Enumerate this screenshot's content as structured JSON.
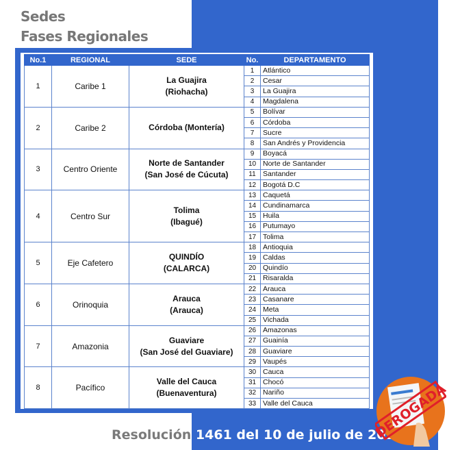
{
  "title1": "Sedes",
  "title2": "Fases Regionales",
  "headers": {
    "no1": "No.1",
    "regional": "REGIONAL",
    "sede": "SEDE",
    "no": "No.",
    "departamento": "DEPARTAMENTO"
  },
  "rows": [
    {
      "no": "1",
      "regional": "Caribe 1",
      "sede1": "La Guajira",
      "sede2": "(Riohacha)",
      "deps": [
        [
          "1",
          "Atlántico"
        ],
        [
          "2",
          "Cesar"
        ],
        [
          "3",
          "La Guajira"
        ],
        [
          "4",
          "Magdalena"
        ]
      ]
    },
    {
      "no": "2",
      "regional": "Caribe 2",
      "sede1": "Córdoba (Montería)",
      "sede2": "",
      "deps": [
        [
          "5",
          "Bolívar"
        ],
        [
          "6",
          "Córdoba"
        ],
        [
          "7",
          "Sucre"
        ],
        [
          "8",
          "San Andrés y Providencia"
        ]
      ]
    },
    {
      "no": "3",
      "regional": "Centro Oriente",
      "sede1": "Norte de Santander",
      "sede2": "(San José de Cúcuta)",
      "deps": [
        [
          "9",
          "Boyacá"
        ],
        [
          "10",
          "Norte de Santander"
        ],
        [
          "11",
          "Santander"
        ],
        [
          "12",
          "Bogotá D.C"
        ]
      ]
    },
    {
      "no": "4",
      "regional": "Centro Sur",
      "sede1": "Tolima",
      "sede2": "(Ibagué)",
      "deps": [
        [
          "13",
          "Caquetá"
        ],
        [
          "14",
          "Cundinamarca"
        ],
        [
          "15",
          "Huila"
        ],
        [
          "16",
          "Putumayo"
        ],
        [
          "17",
          "Tolima"
        ]
      ]
    },
    {
      "no": "5",
      "regional": "Eje Cafetero",
      "sede1": "QUINDÍO",
      "sede2": "(CALARCA)",
      "deps": [
        [
          "18",
          "Antioquia"
        ],
        [
          "19",
          "Caldas"
        ],
        [
          "20",
          "Quindío"
        ],
        [
          "21",
          "Risaralda"
        ]
      ]
    },
    {
      "no": "6",
      "regional": "Orinoquia",
      "sede1": "Arauca",
      "sede2": "(Arauca)",
      "deps": [
        [
          "22",
          "Arauca"
        ],
        [
          "23",
          "Casanare"
        ],
        [
          "24",
          "Meta"
        ],
        [
          "25",
          "Vichada"
        ]
      ]
    },
    {
      "no": "7",
      "regional": "Amazonia",
      "sede1": "Guaviare",
      "sede2": "(San José del Guaviare)",
      "deps": [
        [
          "26",
          "Amazonas"
        ],
        [
          "27",
          "Guainía"
        ],
        [
          "28",
          "Guaviare"
        ],
        [
          "29",
          "Vaupés"
        ]
      ]
    },
    {
      "no": "8",
      "regional": "Pacífico",
      "sede1": "Valle del Cauca",
      "sede2": "(Buenaventura)",
      "deps": [
        [
          "30",
          "Cauca"
        ],
        [
          "31",
          "Chocó"
        ],
        [
          "32",
          "Nariño"
        ],
        [
          "33",
          "Valle del Cauca"
        ]
      ]
    }
  ],
  "footer": {
    "part1": "Resolución",
    "part2": "1461 del 10 de julio de 2018"
  },
  "stamp": {
    "text": "DEROGADA",
    "icon": "document-stamp-icon"
  },
  "colors": {
    "blue": "#3266cc",
    "orange": "#e8731c",
    "stamp_red": "#e0202a"
  }
}
